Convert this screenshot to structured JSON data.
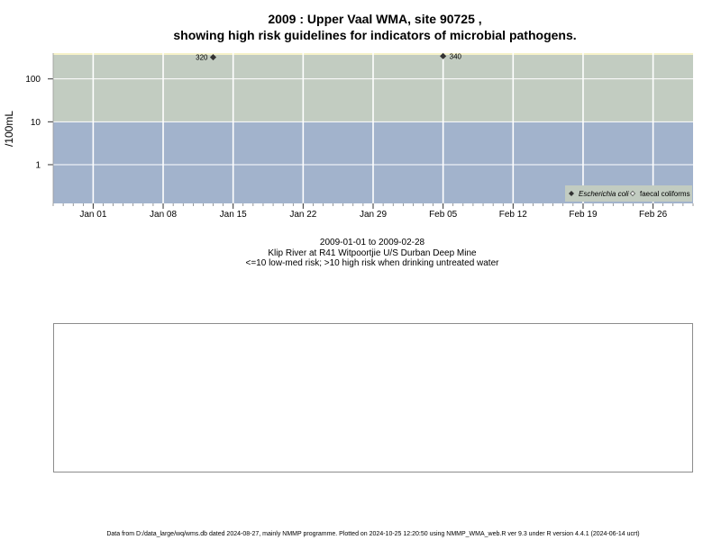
{
  "title_line1": "2009 : Upper Vaal WMA, site 90725 ,",
  "title_line2": "showing high risk guidelines for indicators of microbial pathogens.",
  "ylabel": "/100mL",
  "caption": {
    "line1": "2009-01-01 to 2009-02-28",
    "line2": "Klip River at R41 Witpoortjie U/S Durban Deep Mine",
    "line3": "<=10 low-med risk; >10 high risk when drinking untreated water"
  },
  "footer": "Data from D:/data_large/wq/wms.db dated 2024-08-27, mainly NMMP programme. Plotted on 2024-10-25 12:20:50 using NMMP_WMA_web.R ver 9.3 under R version 4.4.1 (2024-06-14 ucrt)",
  "colors": {
    "high_risk_band": "#c2ccc1",
    "low_risk_band": "#a2b3cc",
    "top_band_edge": "#f6f2c8",
    "grid": "#ffffff",
    "marker": "#333333"
  },
  "chart_data": {
    "type": "scatter",
    "y_scale": "log",
    "grid": true,
    "legend_position": "bottom-right",
    "x_range": [
      "2008-12-28",
      "2009-03-02"
    ],
    "y_range": [
      0.125,
      400
    ],
    "x_ticks": [
      {
        "date": "2009-01-01",
        "label": "Jan 01"
      },
      {
        "date": "2009-01-08",
        "label": "Jan 08"
      },
      {
        "date": "2009-01-15",
        "label": "Jan 15"
      },
      {
        "date": "2009-01-22",
        "label": "Jan 22"
      },
      {
        "date": "2009-01-29",
        "label": "Jan 29"
      },
      {
        "date": "2009-02-05",
        "label": "Feb 05"
      },
      {
        "date": "2009-02-12",
        "label": "Feb 12"
      },
      {
        "date": "2009-02-19",
        "label": "Feb 19"
      },
      {
        "date": "2009-02-26",
        "label": "Feb 26"
      }
    ],
    "y_ticks": [
      {
        "value": 1,
        "label": "1"
      },
      {
        "value": 10,
        "label": "10"
      },
      {
        "value": 100,
        "label": "100"
      }
    ],
    "bands": [
      {
        "from": 0.125,
        "to": 10,
        "meaning": "low-med risk"
      },
      {
        "from": 10,
        "to": 400,
        "meaning": "high risk"
      }
    ],
    "series": [
      {
        "name": "Escherichia coli",
        "marker": "filled-diamond",
        "points": [
          {
            "x": "2009-01-13",
            "y": 320,
            "label": "320"
          },
          {
            "x": "2009-02-05",
            "y": 340,
            "label": "340"
          }
        ]
      },
      {
        "name": "faecal coliforms",
        "marker": "open-diamond",
        "points": []
      }
    ]
  }
}
